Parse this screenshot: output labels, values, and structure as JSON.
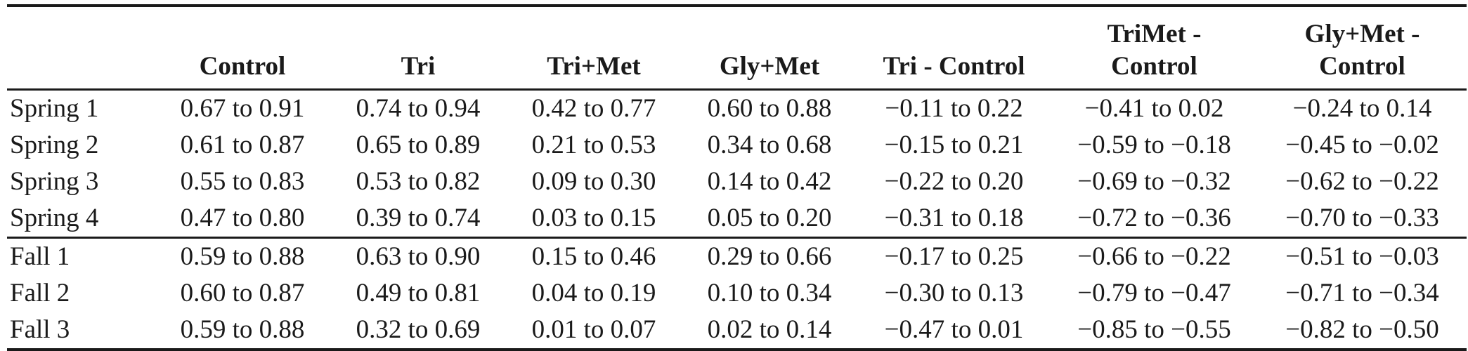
{
  "table": {
    "headers": [
      "",
      "Control",
      "Tri",
      "Tri+Met",
      "Gly+Met",
      "Tri - Control",
      "TriMet - Control",
      "Gly+Met - Control"
    ],
    "header_lines": [
      [
        ""
      ],
      [
        "Control"
      ],
      [
        "Tri"
      ],
      [
        "Tri+Met"
      ],
      [
        "Gly+Met"
      ],
      [
        "Tri - Control"
      ],
      [
        "TriMet -",
        "Control"
      ],
      [
        "Gly+Met -",
        "Control"
      ]
    ],
    "rows": [
      {
        "label": "Spring 1",
        "cells": [
          "0.67 to 0.91",
          "0.74 to 0.94",
          "0.42 to 0.77",
          "0.60 to 0.88",
          "−0.11 to 0.22",
          "−0.41 to 0.02",
          "−0.24 to 0.14"
        ]
      },
      {
        "label": "Spring 2",
        "cells": [
          "0.61 to 0.87",
          "0.65 to 0.89",
          "0.21 to 0.53",
          "0.34 to 0.68",
          "−0.15 to 0.21",
          "−0.59 to −0.18",
          "−0.45 to −0.02"
        ]
      },
      {
        "label": "Spring 3",
        "cells": [
          "0.55 to 0.83",
          "0.53 to 0.82",
          "0.09 to 0.30",
          "0.14 to 0.42",
          "−0.22 to 0.20",
          "−0.69 to −0.32",
          "−0.62 to −0.22"
        ]
      },
      {
        "label": "Spring 4",
        "cells": [
          "0.47 to 0.80",
          "0.39 to 0.74",
          "0.03 to 0.15",
          "0.05 to 0.20",
          "−0.31 to 0.18",
          "−0.72 to −0.36",
          "−0.70 to −0.33"
        ]
      },
      {
        "label": "Fall 1",
        "cells": [
          "0.59 to 0.88",
          "0.63 to 0.90",
          "0.15 to 0.46",
          "0.29 to 0.66",
          "−0.17 to 0.25",
          "−0.66 to −0.22",
          "−0.51 to −0.03"
        ]
      },
      {
        "label": "Fall 2",
        "cells": [
          "0.60 to 0.87",
          "0.49 to 0.81",
          "0.04 to 0.19",
          "0.10 to 0.34",
          "−0.30 to 0.13",
          "−0.79 to −0.47",
          "−0.71 to −0.34"
        ]
      },
      {
        "label": "Fall 3",
        "cells": [
          "0.59 to 0.88",
          "0.32 to 0.69",
          "0.01 to 0.07",
          "0.02 to 0.14",
          "−0.47 to 0.01",
          "−0.85 to −0.55",
          "−0.82 to −0.50"
        ]
      }
    ]
  }
}
